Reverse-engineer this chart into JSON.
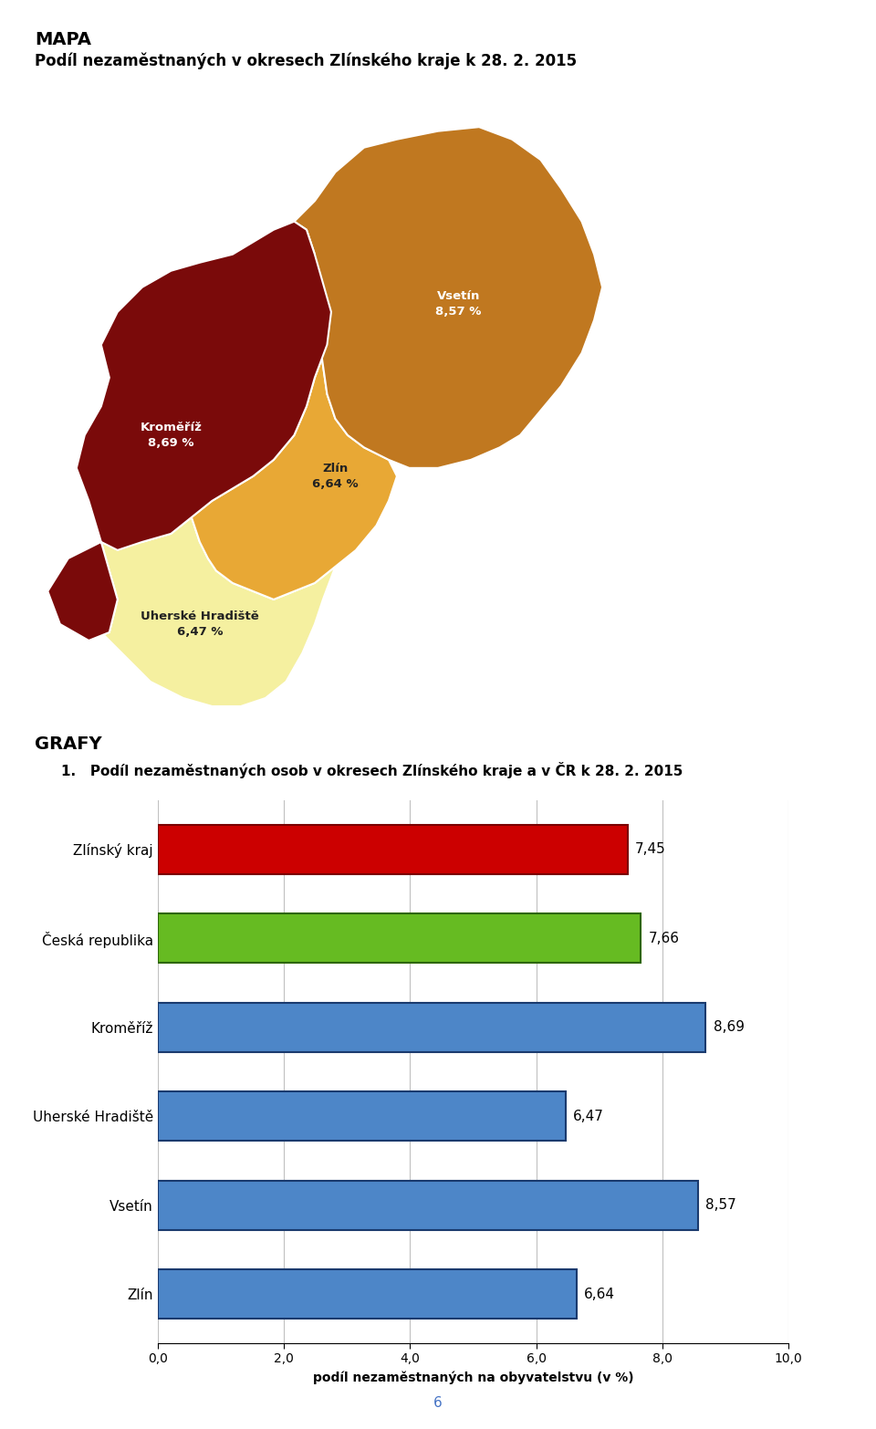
{
  "title_mapa": "MAPA",
  "subtitle_mapa": "Podíl nezaměstnaných v okresech Zlínského kraje k 28. 2. 2015",
  "title_grafy": "GRAFY",
  "chart_title": "1.   Podíl nezaměstnaných osob v okresech Zlínského kraje a v ČR k 28. 2. 2015",
  "categories": [
    "Zlínský kraj",
    "Česká republika",
    "Kroměříž",
    "Uherské Hradiště",
    "Vsetín",
    "Zlín"
  ],
  "values": [
    7.45,
    7.66,
    8.69,
    6.47,
    8.57,
    6.64
  ],
  "bar_colors": [
    "#cc0000",
    "#66bb22",
    "#4d86c8",
    "#4d86c8",
    "#4d86c8",
    "#4d86c8"
  ],
  "bar_edge_colors": [
    "#7a0000",
    "#2d6600",
    "#1a3a6e",
    "#1a3a6e",
    "#1a3a6e",
    "#1a3a6e"
  ],
  "value_labels": [
    "7,45",
    "7,66",
    "8,69",
    "6,47",
    "8,57",
    "6,64"
  ],
  "xlabel": "podíl nezaměstnaných na obyvatelstvu (v %)",
  "xlim": [
    0,
    10
  ],
  "xticks": [
    0.0,
    2.0,
    4.0,
    6.0,
    8.0,
    10.0
  ],
  "xtick_labels": [
    "0,0",
    "2,0",
    "4,0",
    "6,0",
    "8,0",
    "10,0"
  ],
  "page_number": "6",
  "kromriz_color": "#7a0a0a",
  "vsetin_color": "#c07820",
  "zlin_color": "#e8a835",
  "uh_color": "#f5f0a0",
  "map_label_color_dark": "#000000",
  "map_label_color_light": "#ffffff",
  "bg_color": "#ffffff",
  "grid_color": "#c0c0c0",
  "axis_label_fontsize": 10,
  "tick_fontsize": 10,
  "value_fontsize": 11,
  "category_fontsize": 11
}
